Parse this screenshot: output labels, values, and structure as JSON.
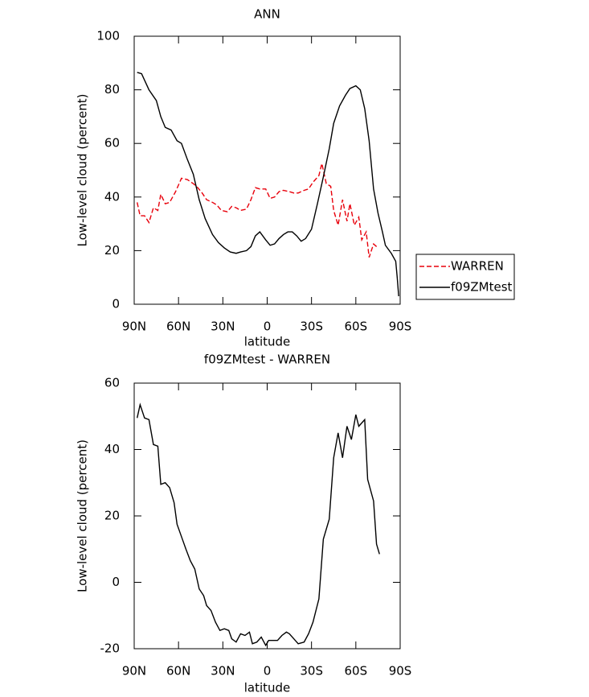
{
  "chart_data": [
    {
      "type": "line",
      "title": "ANN",
      "x_label": "latitude",
      "y_label": "Low-level cloud (percent)",
      "xlim": [
        90,
        -90
      ],
      "xticks": [
        {
          "value": 90,
          "label": "90N"
        },
        {
          "value": 60,
          "label": "60N"
        },
        {
          "value": 30,
          "label": "30N"
        },
        0,
        {
          "value": -30,
          "label": "30S"
        },
        {
          "value": -60,
          "label": "60S"
        },
        {
          "value": -90,
          "label": "90S"
        }
      ],
      "ylim": [
        0,
        100
      ],
      "yticks": [
        0,
        20,
        40,
        60,
        80,
        100
      ],
      "legend": "right",
      "series": [
        {
          "name": "WARREN",
          "color": "#e8000b",
          "linestyle": "dashed",
          "x": [
            88,
            86,
            83,
            80,
            77,
            74,
            72,
            69,
            66,
            62,
            58,
            54,
            50,
            47,
            44,
            41,
            37,
            34,
            31,
            27,
            24,
            21,
            18,
            14,
            11,
            8,
            5,
            1,
            -2,
            -5,
            -8,
            -11,
            -15,
            -18,
            -21,
            -25,
            -28,
            -31,
            -35,
            -37,
            -40,
            -43,
            -45,
            -48,
            -51,
            -54,
            -56,
            -59,
            -62,
            -64,
            -67,
            -69,
            -72,
            -75
          ],
          "values": [
            38,
            33,
            33,
            30.5,
            36,
            35,
            41,
            37.5,
            38,
            42,
            47,
            46.5,
            45,
            43.5,
            41.5,
            39,
            38,
            37,
            35,
            34.5,
            36.5,
            36,
            35,
            35.5,
            39,
            43.5,
            43,
            43,
            39.5,
            40,
            42,
            42.5,
            42,
            41.5,
            41.5,
            42.5,
            43,
            45.5,
            48,
            52.5,
            45,
            44,
            35,
            29.5,
            39,
            31,
            37.5,
            29.5,
            32.5,
            24,
            27,
            17.5,
            22.5,
            21
          ]
        },
        {
          "name": "f09ZMtest",
          "color": "#000000",
          "linestyle": "solid",
          "x": [
            88,
            85,
            80,
            75,
            72,
            69,
            65,
            61,
            58,
            54,
            50,
            46,
            42,
            37,
            33,
            29,
            25,
            21,
            18,
            14,
            11,
            8,
            5,
            1,
            -2,
            -5,
            -8,
            -11,
            -14,
            -17,
            -20,
            -23,
            -26,
            -30,
            -34,
            -38,
            -42,
            -45,
            -49,
            -53,
            -56,
            -60,
            -63,
            -66,
            -69,
            -72,
            -75,
            -78,
            -80,
            -84,
            -87,
            -88,
            -89
          ],
          "values": [
            86.5,
            86,
            80,
            76,
            70,
            66,
            65,
            61,
            60,
            54,
            48.5,
            39,
            32,
            26,
            23,
            21,
            19.5,
            19,
            19.5,
            20,
            21.5,
            25.5,
            27,
            24,
            22,
            22.5,
            24.5,
            26,
            27,
            27,
            25.5,
            23.5,
            24.5,
            28,
            37.5,
            47.5,
            58,
            67.5,
            74,
            78,
            80.5,
            81.5,
            80,
            73,
            61,
            43,
            34,
            27,
            22,
            19,
            16,
            10,
            3
          ]
        }
      ]
    },
    {
      "type": "line",
      "title": "f09ZMtest - WARREN",
      "x_label": "latitude",
      "y_label": "Low-level cloud (percent)",
      "xlim": [
        90,
        -90
      ],
      "xticks": [
        {
          "value": 90,
          "label": "90N"
        },
        {
          "value": 60,
          "label": "60N"
        },
        {
          "value": 30,
          "label": "30N"
        },
        0,
        {
          "value": -30,
          "label": "30S"
        },
        {
          "value": -60,
          "label": "60S"
        },
        {
          "value": -90,
          "label": "90S"
        }
      ],
      "ylim": [
        -20,
        60
      ],
      "yticks": [
        -20,
        0,
        20,
        40,
        60
      ],
      "color": "#000000",
      "x": [
        88,
        86,
        83,
        80,
        77,
        74,
        72,
        69,
        66,
        63,
        61,
        57,
        55,
        52,
        49,
        46,
        43,
        41,
        38,
        35,
        32,
        29,
        26,
        24,
        21,
        18,
        15,
        12,
        10,
        7,
        4,
        1,
        -1,
        -4,
        -7,
        -10,
        -13,
        -15,
        -19,
        -21,
        -25,
        -28,
        -31,
        -35,
        -38,
        -42,
        -45,
        -48,
        -51,
        -54,
        -57,
        -60,
        -62,
        -66,
        -68,
        -72,
        -74,
        -76
      ],
      "values": [
        49.5,
        53.5,
        49.5,
        49,
        41.5,
        41,
        29.5,
        30,
        28.5,
        24,
        17.5,
        12.5,
        10,
        6.5,
        4,
        -2,
        -4,
        -7,
        -8.5,
        -12,
        -14.5,
        -14,
        -14.5,
        -17,
        -18,
        -15.5,
        -16,
        -15,
        -18.5,
        -18,
        -16.5,
        -19,
        -17.5,
        -17.5,
        -17.5,
        -16,
        -15,
        -15.5,
        -17.5,
        -18.5,
        -18,
        -15.5,
        -12,
        -5,
        13,
        19,
        37.5,
        45,
        37.5,
        47,
        43,
        50.5,
        47,
        49,
        31,
        24.5,
        11.5,
        8.5
      ]
    }
  ]
}
